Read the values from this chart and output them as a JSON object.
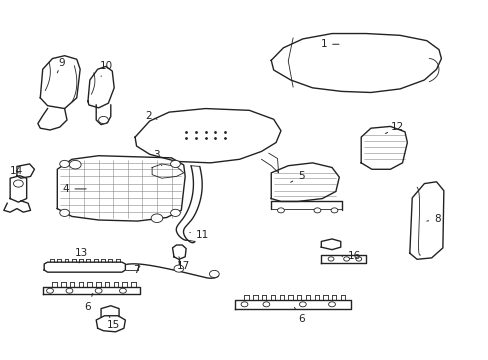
{
  "title": "",
  "background_color": "#ffffff",
  "figsize": [
    4.89,
    3.6
  ],
  "dpi": 100,
  "line_color": "#222222",
  "label_fontsize": 7.5
}
